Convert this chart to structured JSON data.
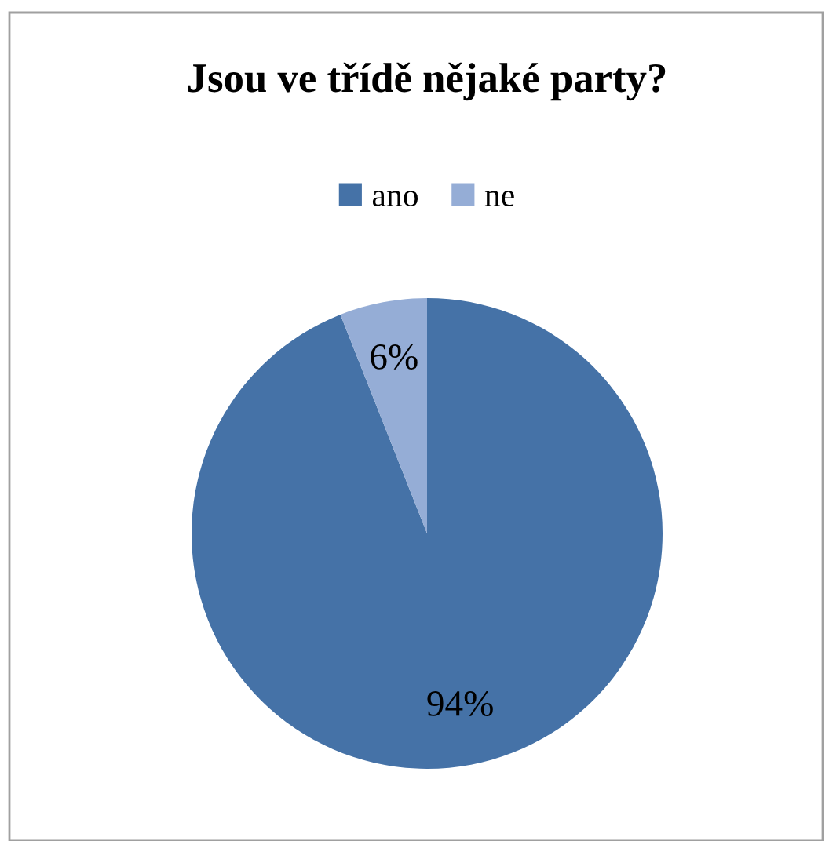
{
  "chart_data": {
    "type": "pie",
    "title": "Jsou ve třídě nějaké party?",
    "categories": [
      "ano",
      "ne"
    ],
    "values": [
      94,
      6
    ],
    "colors": [
      "#4572a7",
      "#95add6"
    ],
    "value_labels": [
      "94%",
      "6%"
    ],
    "legend": "top"
  }
}
